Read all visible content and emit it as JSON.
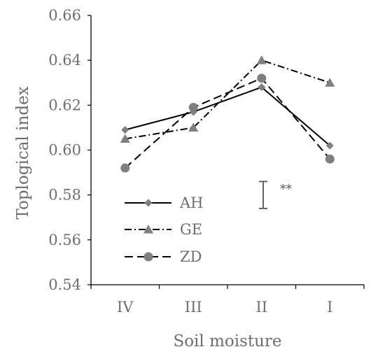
{
  "chart_data": {
    "type": "line",
    "xlabel": "Soil moisture",
    "ylabel": "Toplogical index",
    "categories": [
      "IV",
      "III",
      "II",
      "I"
    ],
    "ylim": [
      0.54,
      0.66
    ],
    "yticks": [
      "0.54",
      "0.56",
      "0.58",
      "0.60",
      "0.62",
      "0.64",
      "0.66"
    ],
    "grid": false,
    "legend_position": "bottom-left",
    "series": [
      {
        "name": "AH",
        "values": [
          0.609,
          0.617,
          0.628,
          0.602
        ],
        "marker": "diamond",
        "line_style": "solid"
      },
      {
        "name": "GE",
        "values": [
          0.605,
          0.61,
          0.64,
          0.63
        ],
        "marker": "triangle",
        "line_style": "dash-dot"
      },
      {
        "name": "ZD",
        "values": [
          0.592,
          0.619,
          0.632,
          0.596
        ],
        "marker": "circle",
        "line_style": "dashed"
      }
    ],
    "annotations": {
      "error_bar": {
        "low": 0.574,
        "high": 0.586
      },
      "significance": "**"
    },
    "colors": {
      "line": "#000000",
      "marker": "#7f7f7f",
      "axis": "#000000",
      "text": "#6e6e6e"
    }
  }
}
